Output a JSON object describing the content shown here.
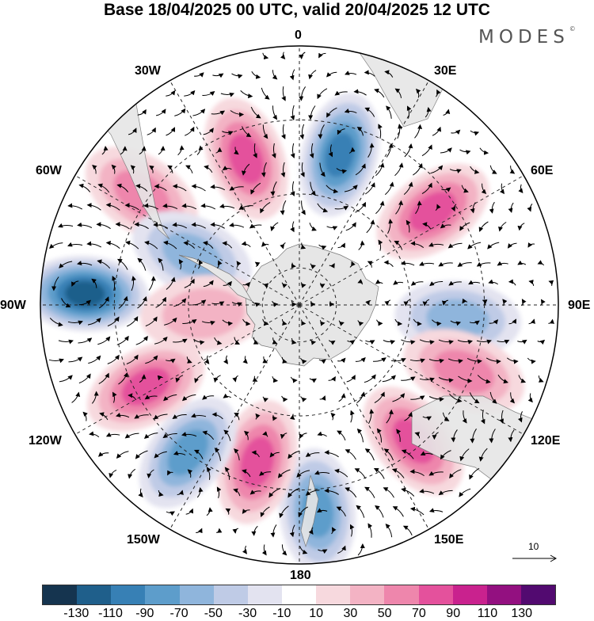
{
  "title": "Base 18/04/2025 00 UTC, valid 20/04/2025 12 UTC",
  "brand": "MODES",
  "brand_mark": "©",
  "longitude_labels": {
    "lon_0": "0",
    "lon_30e": "30E",
    "lon_60e": "60E",
    "lon_90e": "90E",
    "lon_120e": "120E",
    "lon_150e": "150E",
    "lon_180": "180",
    "lon_150w": "150W",
    "lon_120w": "120W",
    "lon_90w": "90W",
    "lon_60w": "60W",
    "lon_30w": "30W"
  },
  "reference_vector_label": "10",
  "colorbar": {
    "colors": [
      "#15344f",
      "#1f5f8b",
      "#3780b5",
      "#5d9dcb",
      "#8fb5dc",
      "#bfcbe6",
      "#e3e3f0",
      "#ffffff",
      "#f7d9de",
      "#f3b3c4",
      "#ee86ac",
      "#e4519c",
      "#c9228e",
      "#931080",
      "#520a70"
    ],
    "tick_labels": [
      "-130",
      "-110",
      "-90",
      "-70",
      "-50",
      "-30",
      "-10",
      "10",
      "30",
      "50",
      "70",
      "90",
      "110",
      "130"
    ]
  },
  "anomaly_centers": [
    {
      "lon": 15,
      "lat": -48,
      "value": -80
    },
    {
      "lon": -20,
      "lat": -48,
      "value": 75
    },
    {
      "lon": 55,
      "lat": -46,
      "value": 60
    },
    {
      "lon": 95,
      "lat": -47,
      "value": -55
    },
    {
      "lon": 112,
      "lat": -42,
      "value": 45
    },
    {
      "lon": 140,
      "lat": -42,
      "value": 70
    },
    {
      "lon": 175,
      "lat": -34,
      "value": -70
    },
    {
      "lon": -165,
      "lat": -46,
      "value": 65
    },
    {
      "lon": -143,
      "lat": -40,
      "value": -70
    },
    {
      "lon": -118,
      "lat": -43,
      "value": 75
    },
    {
      "lon": -87,
      "lat": -32,
      "value": -110
    },
    {
      "lon": -55,
      "lat": -38,
      "value": 40
    },
    {
      "lon": -65,
      "lat": -58,
      "value": -45
    },
    {
      "lon": -95,
      "lat": -64,
      "value": 30
    }
  ]
}
